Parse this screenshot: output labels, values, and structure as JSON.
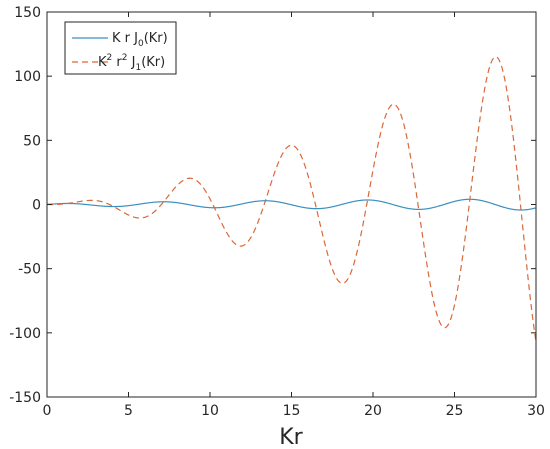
{
  "chart_data": {
    "type": "line",
    "xlabel": "Kr",
    "ylabel": "",
    "title": "",
    "xlim": [
      0,
      30
    ],
    "ylim": [
      -150,
      150
    ],
    "xticks": [
      0,
      5,
      10,
      15,
      20,
      25,
      30
    ],
    "yticks": [
      -150,
      -100,
      -50,
      0,
      50,
      100,
      150
    ],
    "grid": false,
    "legend_position": "top-left",
    "series": [
      {
        "name": "K r J0(Kr)",
        "legend_main": "K r J",
        "legend_sub": "0",
        "legend_tail": "(Kr)",
        "style": "solid",
        "color": "#3a8fc0",
        "function": "x*J0(x)",
        "x_range": [
          0,
          30
        ]
      },
      {
        "name": "K2 r2 J1(Kr)",
        "legend_part1": "K",
        "legend_sup1": "2",
        "legend_part2": " r",
        "legend_sup2": "2",
        "legend_part3": " J",
        "legend_sub": "1",
        "legend_tail": "(Kr)",
        "style": "dashed",
        "color": "#d9683a",
        "function": "x^2*J1(x)",
        "x_range": [
          0,
          30
        ]
      }
    ]
  }
}
